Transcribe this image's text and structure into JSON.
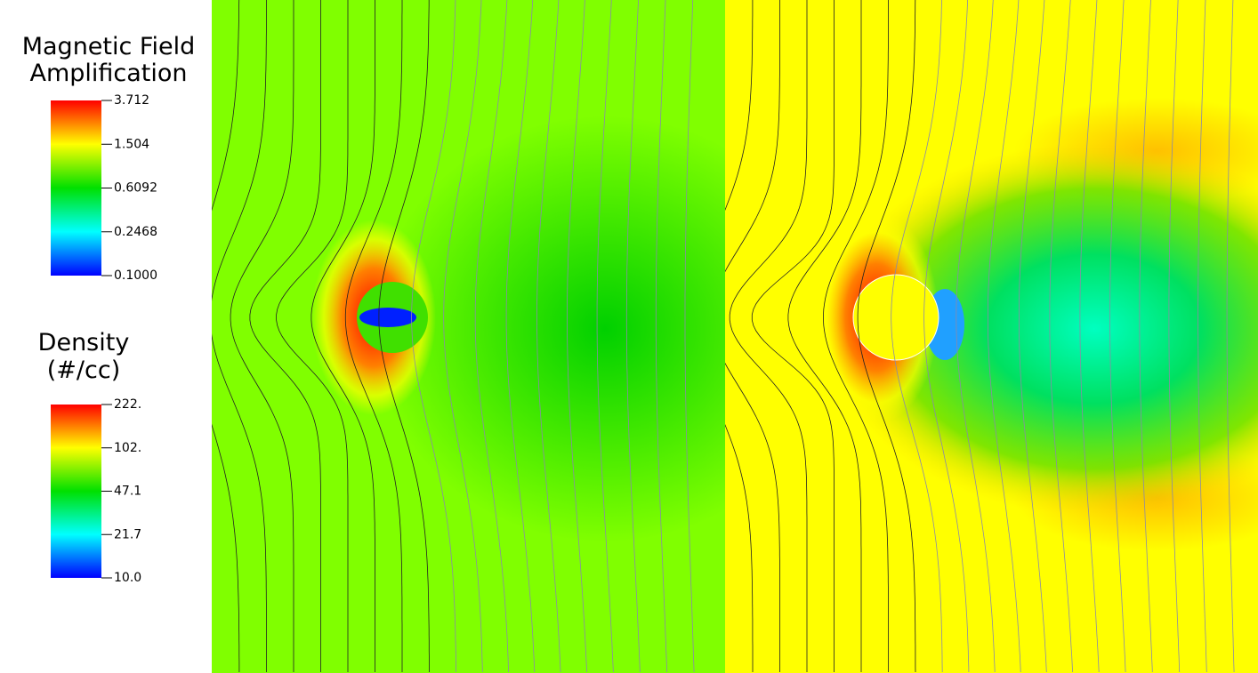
{
  "legends": [
    {
      "title": [
        "Magnetic Field",
        "Amplification"
      ],
      "ticks": [
        "3.712",
        "1.504",
        "0.6092",
        "0.2468",
        "0.1000"
      ]
    },
    {
      "title": [
        "Density",
        "(#/cc)"
      ],
      "ticks": [
        "222.",
        "102.",
        "47.1",
        "21.7",
        "10.0"
      ]
    }
  ]
}
